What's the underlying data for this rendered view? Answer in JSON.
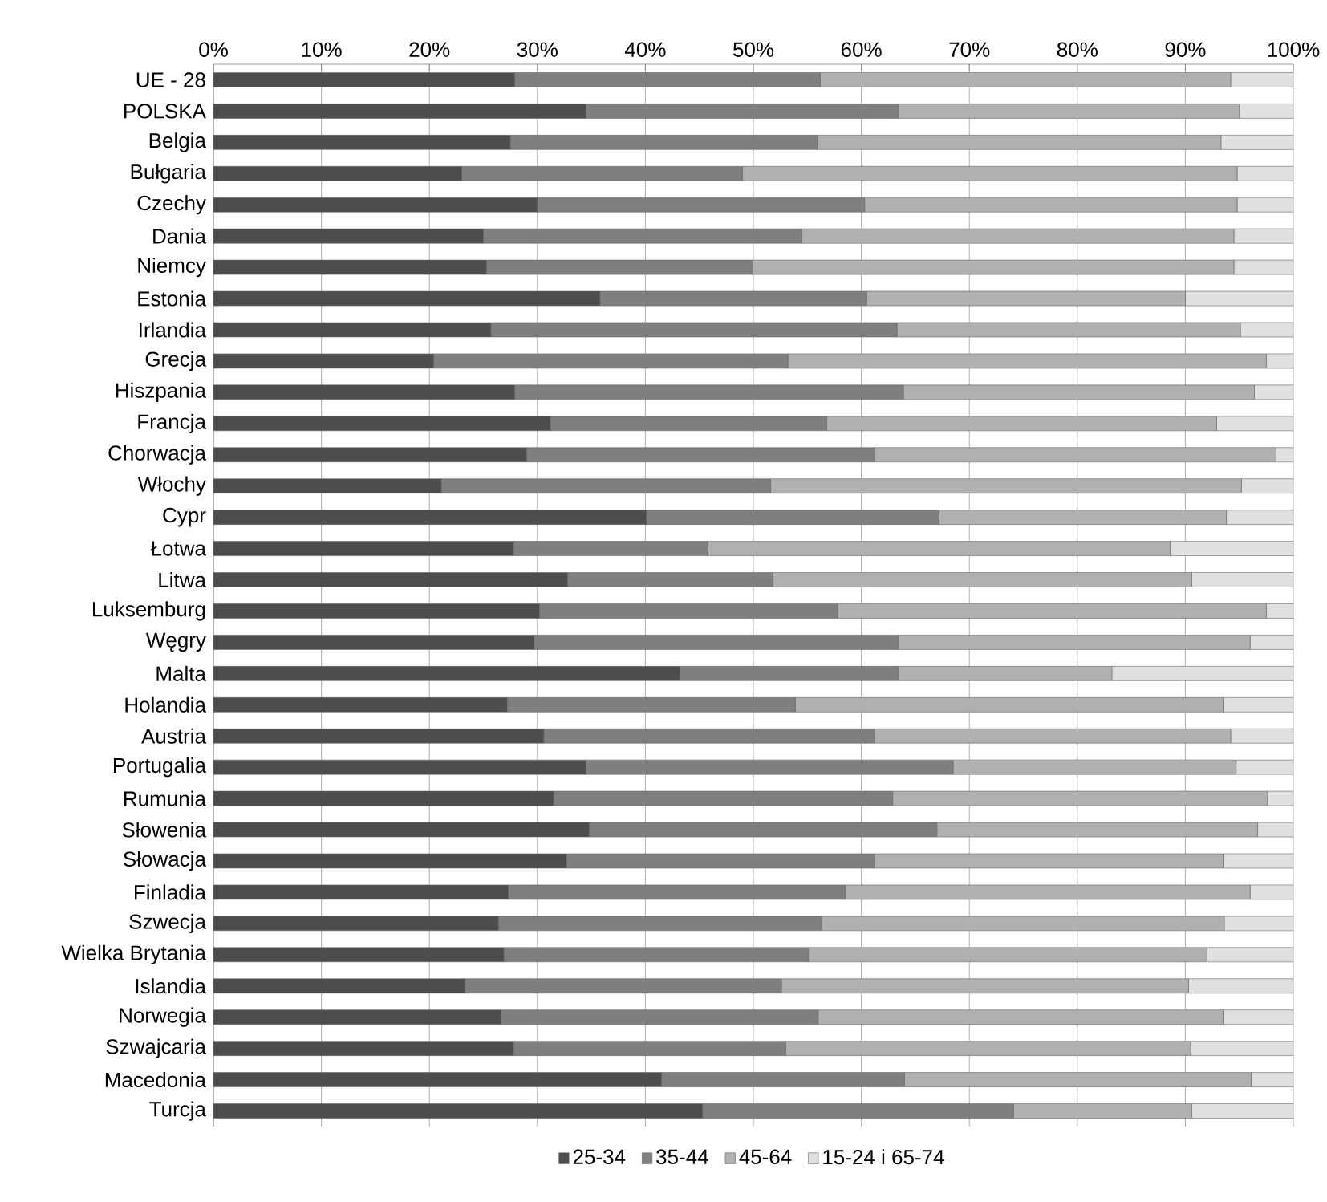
{
  "chart_data": {
    "type": "bar",
    "orientation": "horizontal",
    "stacked": true,
    "categories": [
      "UE - 28",
      "POLSKA",
      "Belgia",
      "Bułgaria",
      "Czechy",
      "Dania",
      "Niemcy",
      "Estonia",
      "Irlandia",
      "Grecja",
      "Hiszpania",
      "Francja",
      "Chorwacja",
      "Włochy",
      "Cypr",
      "Łotwa",
      "Litwa",
      "Luksemburg",
      "Węgry",
      "Malta",
      "Holandia",
      "Austria",
      "Portugalia",
      "Rumunia",
      "Słowenia",
      "Słowacja",
      "Finladia",
      "Szwecja",
      "Wielka Brytania",
      "Islandia",
      "Norwegia",
      "Szwajcaria",
      "Macedonia",
      "Turcja"
    ],
    "series": [
      {
        "name": "25-34",
        "color": "#4d4d4d",
        "values": [
          27.9,
          34.5,
          27.5,
          23.0,
          30.0,
          25.0,
          25.3,
          35.8,
          25.7,
          20.4,
          27.9,
          31.2,
          29.0,
          21.1,
          40.1,
          27.8,
          32.8,
          30.2,
          29.7,
          43.2,
          27.2,
          30.6,
          34.5,
          31.5,
          34.8,
          32.7,
          27.3,
          26.4,
          26.9,
          23.3,
          26.6,
          27.8,
          41.5,
          45.3
        ]
      },
      {
        "name": "35-44",
        "color": "#7f7f7f",
        "values": [
          28.3,
          28.9,
          28.4,
          26.0,
          30.3,
          29.5,
          24.6,
          24.7,
          37.6,
          32.8,
          36.0,
          25.6,
          32.2,
          30.5,
          27.1,
          18.0,
          19.0,
          27.6,
          33.7,
          20.2,
          26.7,
          30.6,
          34.0,
          31.4,
          32.2,
          28.5,
          31.2,
          29.9,
          28.2,
          29.3,
          29.4,
          25.2,
          22.5,
          28.8
        ]
      },
      {
        "name": "45-64",
        "color": "#b0b0b0",
        "values": [
          38.0,
          31.6,
          37.4,
          45.8,
          34.5,
          40.0,
          44.6,
          29.5,
          31.8,
          44.3,
          32.5,
          36.1,
          37.2,
          43.6,
          26.6,
          42.8,
          38.8,
          39.7,
          32.6,
          19.8,
          39.6,
          33.0,
          26.2,
          34.7,
          29.7,
          32.3,
          37.5,
          37.3,
          36.9,
          37.7,
          37.5,
          37.5,
          32.1,
          16.5
        ]
      },
      {
        "name": "15-24 i 65-74",
        "color": "#e0e0e0",
        "values": [
          5.8,
          5.0,
          6.7,
          5.2,
          5.2,
          5.5,
          5.5,
          10.0,
          4.9,
          2.5,
          3.6,
          7.1,
          1.6,
          4.8,
          6.2,
          11.4,
          9.4,
          2.5,
          4.0,
          16.8,
          6.5,
          5.8,
          5.3,
          2.4,
          3.3,
          6.5,
          4.0,
          6.4,
          8.0,
          9.7,
          6.5,
          9.5,
          3.9,
          9.4
        ]
      }
    ],
    "xlim": [
      0,
      100
    ],
    "xticks": [
      {
        "value": 0,
        "label": "0%"
      },
      {
        "value": 10,
        "label": "10%"
      },
      {
        "value": 20,
        "label": "20%"
      },
      {
        "value": 30,
        "label": "30%"
      },
      {
        "value": 40,
        "label": "40%"
      },
      {
        "value": 50,
        "label": "50%"
      },
      {
        "value": 60,
        "label": "60%"
      },
      {
        "value": 70,
        "label": "70%"
      },
      {
        "value": 80,
        "label": "80%"
      },
      {
        "value": 90,
        "label": "90%"
      },
      {
        "value": 100,
        "label": "100%"
      }
    ],
    "grid": "x",
    "legend": "bottom"
  }
}
